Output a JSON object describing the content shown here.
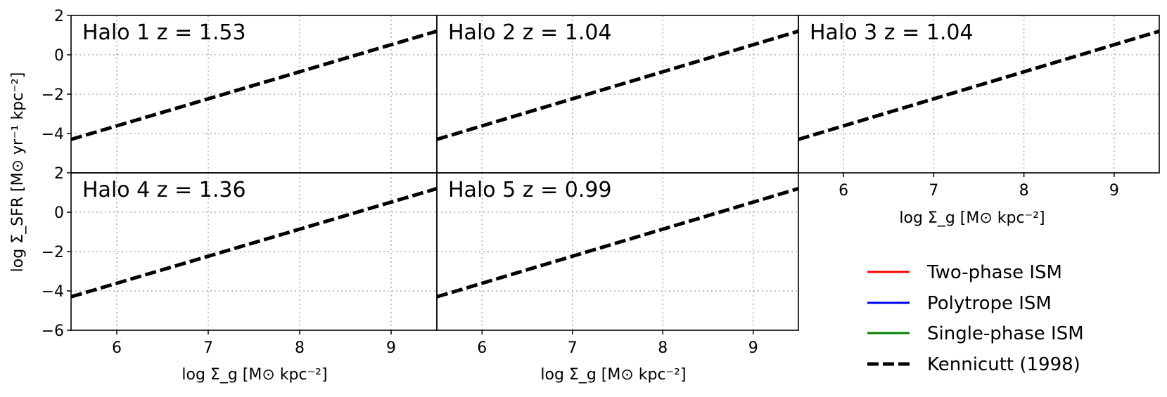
{
  "legend": {
    "placement": "lower-right",
    "items": [
      {
        "label": "Two-phase ISM",
        "color": "#ff0000",
        "style": "solid"
      },
      {
        "label": "Polytrope ISM",
        "color": "#0000ff",
        "style": "solid"
      },
      {
        "label": "Single-phase ISM",
        "color": "#008000",
        "style": "solid"
      },
      {
        "label": "Kennicutt (1998)",
        "color": "#000000",
        "style": "dashed"
      }
    ]
  },
  "axes": {
    "ylabel": "log Σ_SFR [M⊙ yr⁻¹ kpc⁻²]",
    "xlabel": "log Σ_g [M⊙ kpc⁻²]",
    "xticks": [
      "6",
      "7",
      "8",
      "9"
    ],
    "yticks_top_row": [
      "2",
      "0",
      "−2",
      "−4"
    ],
    "yticks_bottom_row": [
      "2",
      "0",
      "−2",
      "−4",
      "−6"
    ]
  },
  "chart_data": [
    {
      "type": "line",
      "title": "Halo 1   z = 1.53",
      "xlim": [
        5.5,
        9.5
      ],
      "ylim": [
        -6,
        2
      ],
      "grid": true,
      "series": [
        {
          "name": "Kennicutt (1998)",
          "x": [
            5.5,
            9.5
          ],
          "y": [
            -4.3,
            1.2
          ]
        }
      ]
    },
    {
      "type": "line",
      "title": "Halo 2   z = 1.04",
      "xlim": [
        5.5,
        9.5
      ],
      "ylim": [
        -6,
        2
      ],
      "grid": true,
      "series": [
        {
          "name": "Kennicutt (1998)",
          "x": [
            5.5,
            9.5
          ],
          "y": [
            -4.3,
            1.2
          ]
        }
      ]
    },
    {
      "type": "line",
      "title": "Halo 3   z = 1.04",
      "xlim": [
        5.5,
        9.5
      ],
      "ylim": [
        -6,
        2
      ],
      "grid": true,
      "series": [
        {
          "name": "Kennicutt (1998)",
          "x": [
            5.5,
            9.5
          ],
          "y": [
            -4.3,
            1.2
          ]
        }
      ]
    },
    {
      "type": "line",
      "title": "Halo 4   z = 1.36",
      "xlim": [
        5.5,
        9.5
      ],
      "ylim": [
        -6,
        2
      ],
      "grid": true,
      "series": [
        {
          "name": "Kennicutt (1998)",
          "x": [
            5.5,
            9.5
          ],
          "y": [
            -4.3,
            1.2
          ]
        }
      ]
    },
    {
      "type": "line",
      "title": "Halo 5   z = 0.99",
      "xlim": [
        5.5,
        9.5
      ],
      "ylim": [
        -6,
        2
      ],
      "grid": true,
      "series": [
        {
          "name": "Kennicutt (1998)",
          "x": [
            5.5,
            9.5
          ],
          "y": [
            -4.3,
            1.2
          ]
        }
      ]
    }
  ]
}
